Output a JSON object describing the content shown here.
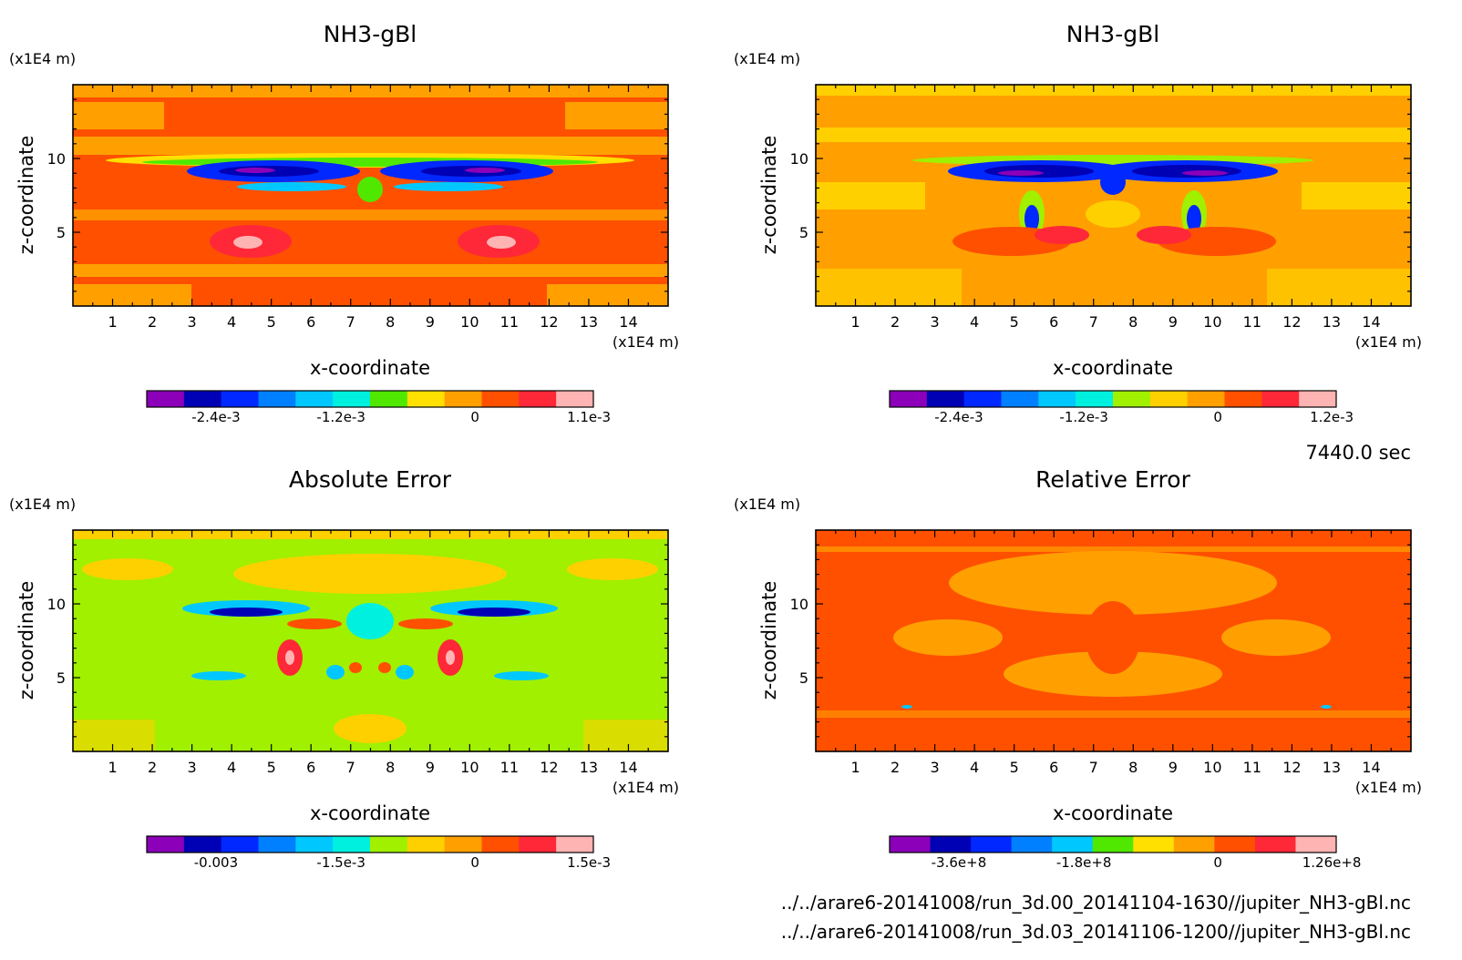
{
  "footer": {
    "time": "7440.0 sec",
    "paths": [
      "../../arare6-20141008/run_3d.00_20141104-1630//jupiter_NH3-gBl.nc",
      "../../arare6-20141008/run_3d.03_20141106-1200//jupiter_NH3-gBl.nc"
    ]
  },
  "chart_data": [
    {
      "type": "heatmap",
      "panel": "top-left",
      "title": "NH3-gBl",
      "xlabel": "x-coordinate",
      "ylabel": "z-coordinate",
      "x_unit": "(x1E4 m)",
      "y_unit": "(x1E4 m)",
      "x_ticks": [
        "1",
        "2",
        "3",
        "4",
        "5",
        "6",
        "7",
        "8",
        "9",
        "10",
        "11",
        "12",
        "13",
        "14"
      ],
      "y_ticks": [
        "5",
        "10"
      ],
      "xlim": [
        0,
        15
      ],
      "ylim": [
        0,
        15
      ],
      "colorbar": {
        "tick_labels": [
          "-2.4e-3",
          "-1.2e-3",
          "0",
          "1.1e-3"
        ],
        "colors": [
          "#8b00b8",
          "#0000b4",
          "#0028ff",
          "#0080ff",
          "#00c8ff",
          "#00f0e0",
          "#50e800",
          "#ffe000",
          "#ffa000",
          "#ff5000",
          "#ff2838",
          "#ffb4b4"
        ]
      }
    },
    {
      "type": "heatmap",
      "panel": "top-right",
      "title": "NH3-gBl",
      "xlabel": "x-coordinate",
      "ylabel": "z-coordinate",
      "x_unit": "(x1E4 m)",
      "y_unit": "(x1E4 m)",
      "x_ticks": [
        "1",
        "2",
        "3",
        "4",
        "5",
        "6",
        "7",
        "8",
        "9",
        "10",
        "11",
        "12",
        "13",
        "14"
      ],
      "y_ticks": [
        "5",
        "10"
      ],
      "xlim": [
        0,
        15
      ],
      "ylim": [
        0,
        15
      ],
      "colorbar": {
        "tick_labels": [
          "-2.4e-3",
          "-1.2e-3",
          "0",
          "1.2e-3"
        ],
        "colors": [
          "#8b00b8",
          "#0000b4",
          "#0028ff",
          "#0080ff",
          "#00c8ff",
          "#00f0e0",
          "#a0f000",
          "#ffd000",
          "#ffa000",
          "#ff5000",
          "#ff2838",
          "#ffb4b4"
        ]
      }
    },
    {
      "type": "heatmap",
      "panel": "bottom-left",
      "title": "Absolute Error",
      "xlabel": "x-coordinate",
      "ylabel": "z-coordinate",
      "x_unit": "(x1E4 m)",
      "y_unit": "(x1E4 m)",
      "x_ticks": [
        "1",
        "2",
        "3",
        "4",
        "5",
        "6",
        "7",
        "8",
        "9",
        "10",
        "11",
        "12",
        "13",
        "14"
      ],
      "y_ticks": [
        "5",
        "10"
      ],
      "xlim": [
        0,
        15
      ],
      "ylim": [
        0,
        15
      ],
      "colorbar": {
        "tick_labels": [
          "-0.003",
          "-1.5e-3",
          "0",
          "1.5e-3"
        ],
        "colors": [
          "#8b00b8",
          "#0000b4",
          "#0028ff",
          "#0080ff",
          "#00c8ff",
          "#00f0e0",
          "#a0f000",
          "#ffd000",
          "#ffa000",
          "#ff5000",
          "#ff2838",
          "#ffb4b4"
        ]
      }
    },
    {
      "type": "heatmap",
      "panel": "bottom-right",
      "title": "Relative Error",
      "xlabel": "x-coordinate",
      "ylabel": "z-coordinate",
      "x_unit": "(x1E4 m)",
      "y_unit": "(x1E4 m)",
      "x_ticks": [
        "1",
        "2",
        "3",
        "4",
        "5",
        "6",
        "7",
        "8",
        "9",
        "10",
        "11",
        "12",
        "13",
        "14"
      ],
      "y_ticks": [
        "5",
        "10"
      ],
      "xlim": [
        0,
        15
      ],
      "ylim": [
        0,
        15
      ],
      "colorbar": {
        "tick_labels": [
          "-3.6e+8",
          "-1.8e+8",
          "0",
          "1.26e+8"
        ],
        "colors": [
          "#8b00b8",
          "#0000b4",
          "#0028ff",
          "#0080ff",
          "#00c8ff",
          "#50e800",
          "#ffe000",
          "#ffa000",
          "#ff5000",
          "#ff2838",
          "#ffb4b4"
        ]
      }
    }
  ]
}
